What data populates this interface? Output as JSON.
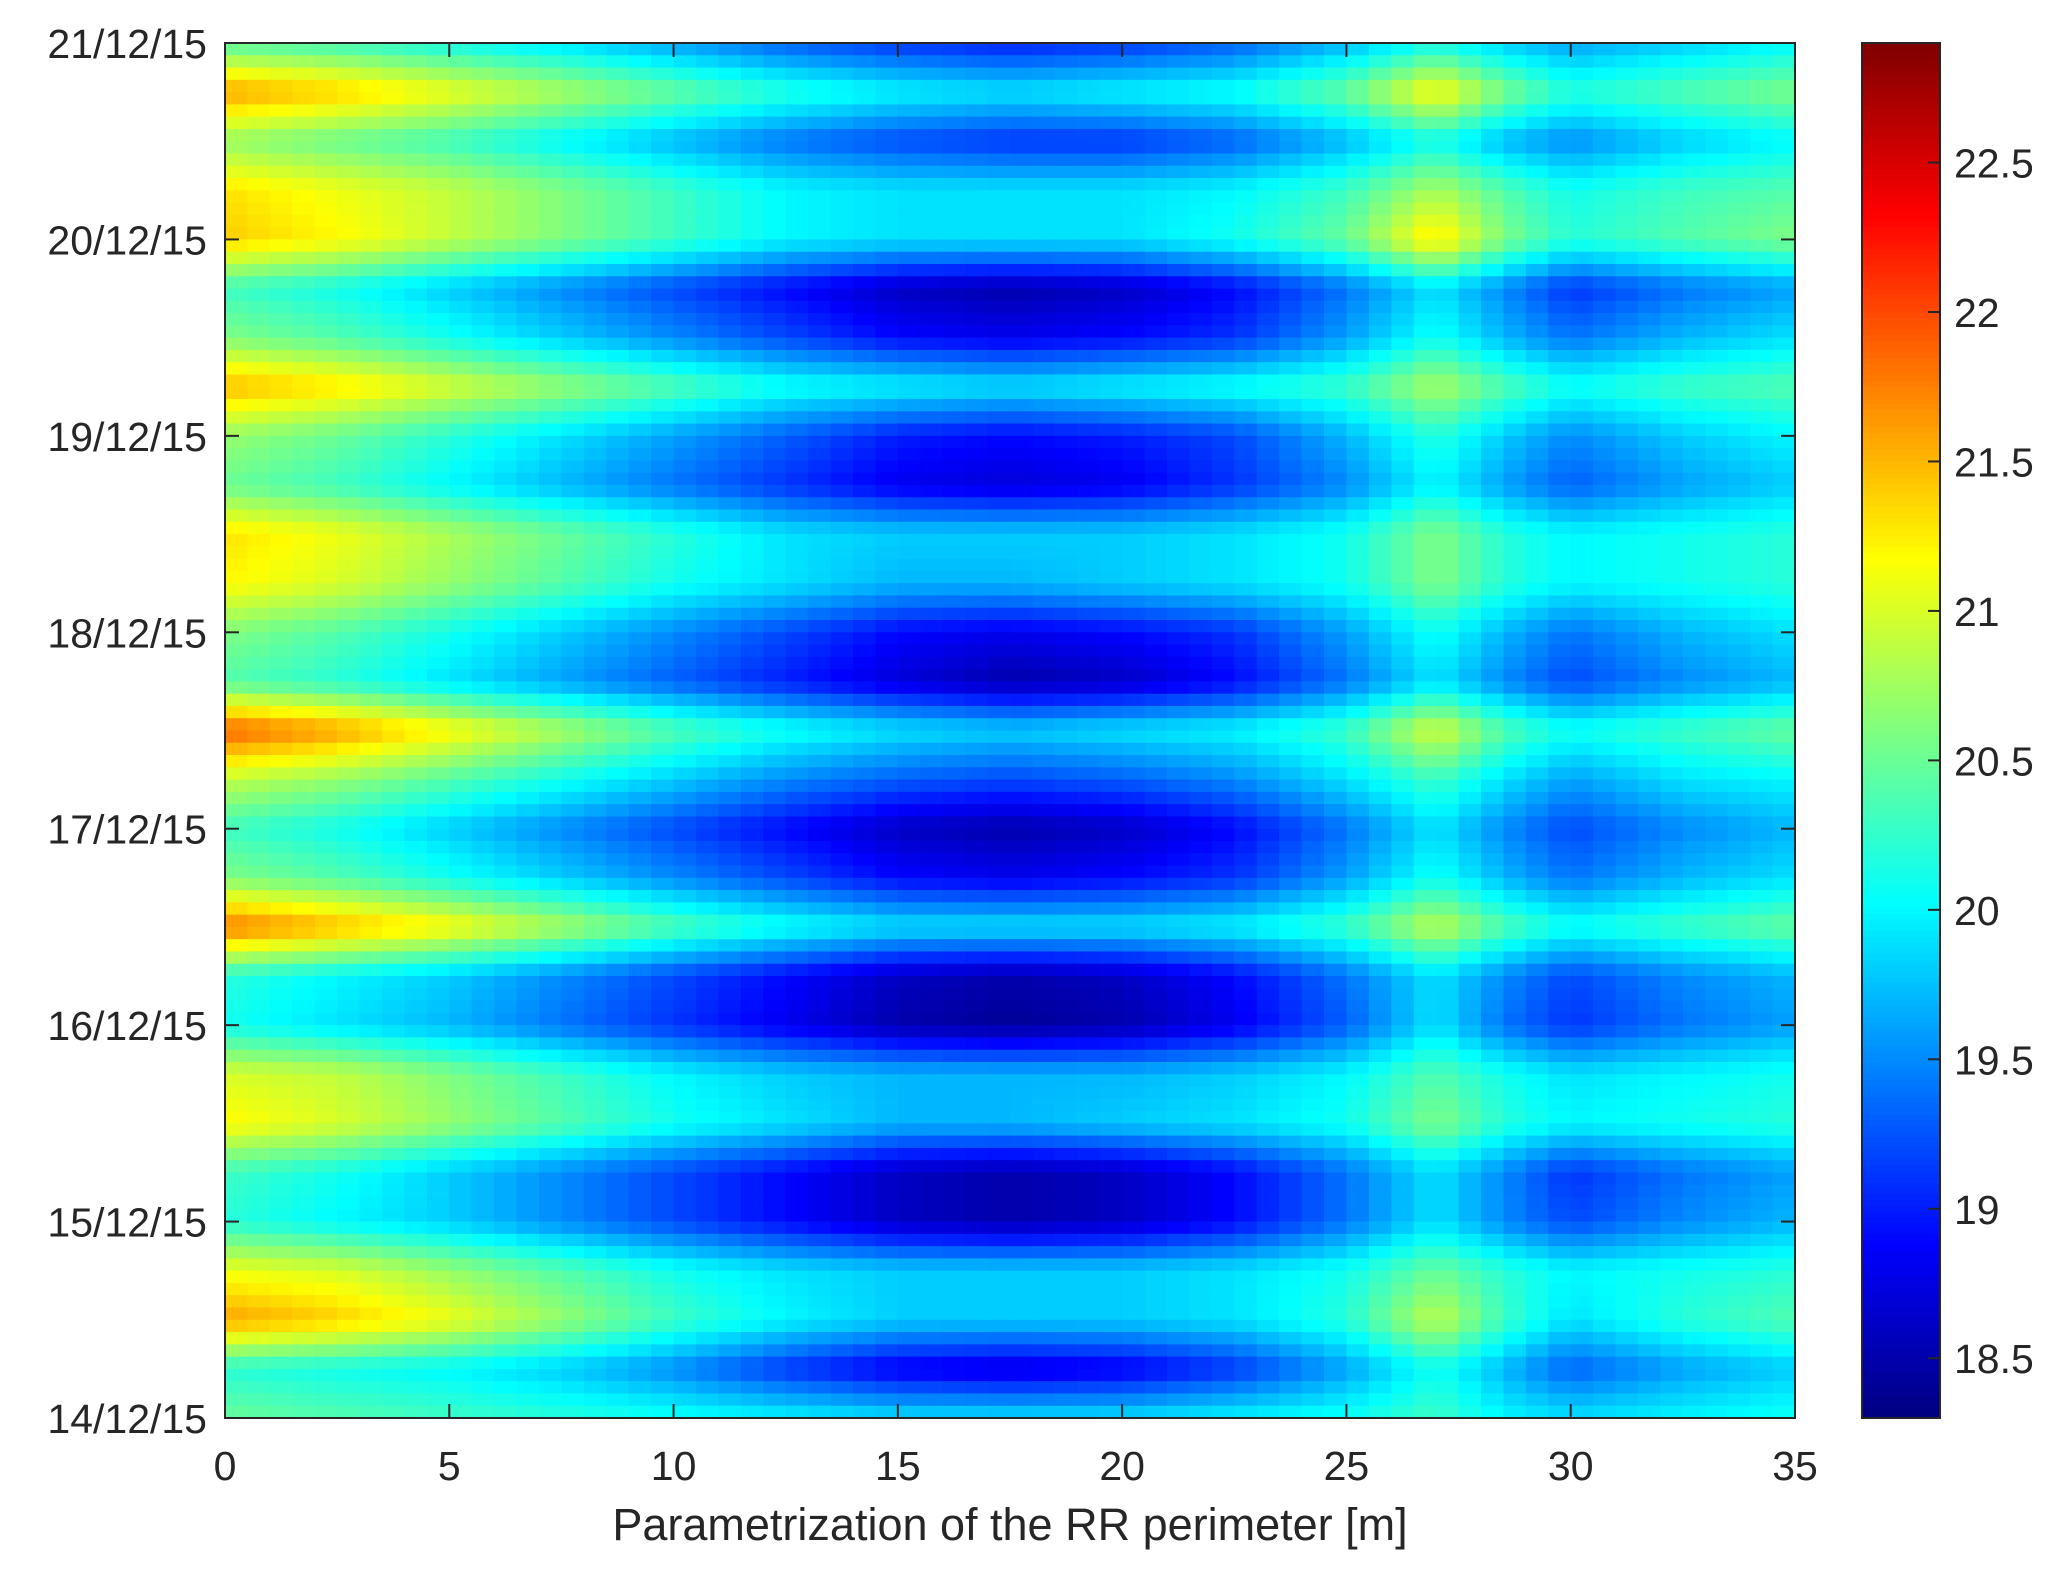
{
  "chart_data": {
    "type": "heatmap",
    "title": "",
    "xlabel": "Parametrization of the RR perimeter [m]",
    "ylabel": "",
    "xlim": [
      0,
      35
    ],
    "ylim": [
      "14/12/15",
      "21/12/15"
    ],
    "x_ticks": [
      "0",
      "5",
      "10",
      "15",
      "20",
      "25",
      "30",
      "35"
    ],
    "y_ticks": [
      "14/12/15",
      "15/12/15",
      "16/12/15",
      "17/12/15",
      "18/12/15",
      "19/12/15",
      "20/12/15",
      "21/12/15"
    ],
    "colorbar": {
      "colormap": "jet",
      "range": [
        18.3,
        22.9
      ],
      "ticks": [
        "18.5",
        "19",
        "19.5",
        "20",
        "20.5",
        "21",
        "21.5",
        "22",
        "22.5"
      ],
      "location": "right"
    },
    "x": [
      0,
      2.5,
      5,
      7.5,
      10,
      12.5,
      15,
      17.5,
      20,
      22.5,
      25,
      27,
      28.5,
      30,
      32.5,
      35
    ],
    "y": [
      "14/12/15 00:00",
      "14/12/15 06:00",
      "14/12/15 12:00",
      "14/12/15 18:00",
      "15/12/15 00:00",
      "15/12/15 06:00",
      "15/12/15 12:00",
      "15/12/15 18:00",
      "16/12/15 00:00",
      "16/12/15 06:00",
      "16/12/15 12:00",
      "16/12/15 18:00",
      "17/12/15 00:00",
      "17/12/15 06:00",
      "17/12/15 12:00",
      "17/12/15 18:00",
      "18/12/15 00:00",
      "18/12/15 06:00",
      "18/12/15 12:00",
      "18/12/15 18:00",
      "19/12/15 00:00",
      "19/12/15 06:00",
      "19/12/15 12:00",
      "19/12/15 18:00",
      "20/12/15 00:00",
      "20/12/15 06:00",
      "20/12/15 12:00",
      "20/12/15 18:00",
      "21/12/15 00:00"
    ],
    "z": [
      [
        20.5,
        20.4,
        20.3,
        20.2,
        20.1,
        20.0,
        19.9,
        19.9,
        19.9,
        20.0,
        20.1,
        20.3,
        20.0,
        19.9,
        20.0,
        20.1
      ],
      [
        20.2,
        20.1,
        20.0,
        19.8,
        19.5,
        19.1,
        18.8,
        18.7,
        18.8,
        19.1,
        19.6,
        20.1,
        19.7,
        19.3,
        19.6,
        19.8
      ],
      [
        21.6,
        21.4,
        21.1,
        20.7,
        20.3,
        20.0,
        19.8,
        19.8,
        19.8,
        19.9,
        20.2,
        20.9,
        20.3,
        19.9,
        20.2,
        20.4
      ],
      [
        21.1,
        21.0,
        20.7,
        20.4,
        20.1,
        19.9,
        19.8,
        19.8,
        19.8,
        19.9,
        20.1,
        20.5,
        20.2,
        20.0,
        20.1,
        20.2
      ],
      [
        20.2,
        20.0,
        19.8,
        19.5,
        19.2,
        18.9,
        18.6,
        18.5,
        18.6,
        18.9,
        19.4,
        19.9,
        19.5,
        19.2,
        19.5,
        19.7
      ],
      [
        20.3,
        20.1,
        19.8,
        19.5,
        19.2,
        18.9,
        18.6,
        18.5,
        18.6,
        18.9,
        19.4,
        19.9,
        19.5,
        19.1,
        19.4,
        19.6
      ],
      [
        21.2,
        21.0,
        20.7,
        20.4,
        20.1,
        19.9,
        19.7,
        19.7,
        19.8,
        19.9,
        20.1,
        20.6,
        20.2,
        20.0,
        20.1,
        20.2
      ],
      [
        21.0,
        20.9,
        20.6,
        20.3,
        20.0,
        19.8,
        19.7,
        19.7,
        19.7,
        19.8,
        20.0,
        20.4,
        20.1,
        19.9,
        20.0,
        20.1
      ],
      [
        20.1,
        19.9,
        19.7,
        19.4,
        19.1,
        18.8,
        18.5,
        18.4,
        18.5,
        18.8,
        19.3,
        19.9,
        19.4,
        19.1,
        19.4,
        19.6
      ],
      [
        20.2,
        20.0,
        19.8,
        19.5,
        19.2,
        18.9,
        18.6,
        18.5,
        18.6,
        18.9,
        19.4,
        19.9,
        19.5,
        19.2,
        19.5,
        19.7
      ],
      [
        21.8,
        21.5,
        21.2,
        20.8,
        20.4,
        20.1,
        19.9,
        19.9,
        19.9,
        20.0,
        20.3,
        20.9,
        20.4,
        20.1,
        20.3,
        20.5
      ],
      [
        20.6,
        20.4,
        20.1,
        19.8,
        19.5,
        19.2,
        18.9,
        18.8,
        18.9,
        19.1,
        19.6,
        20.1,
        19.7,
        19.4,
        19.7,
        19.9
      ],
      [
        20.3,
        20.1,
        19.8,
        19.5,
        19.2,
        18.9,
        18.6,
        18.5,
        18.6,
        18.9,
        19.4,
        19.9,
        19.5,
        19.2,
        19.5,
        19.7
      ],
      [
        20.9,
        20.7,
        20.4,
        20.1,
        19.8,
        19.5,
        19.3,
        19.2,
        19.3,
        19.5,
        19.9,
        20.3,
        19.9,
        19.6,
        19.9,
        20.0
      ],
      [
        21.9,
        21.6,
        21.2,
        20.8,
        20.4,
        20.1,
        19.9,
        19.8,
        19.9,
        20.0,
        20.3,
        21.0,
        20.4,
        20.1,
        20.3,
        20.5
      ],
      [
        20.4,
        20.2,
        19.9,
        19.6,
        19.3,
        19.0,
        18.7,
        18.5,
        18.6,
        18.9,
        19.4,
        19.9,
        19.5,
        19.2,
        19.5,
        19.7
      ],
      [
        20.6,
        20.4,
        20.1,
        19.8,
        19.5,
        19.2,
        18.9,
        18.8,
        18.9,
        19.1,
        19.6,
        20.1,
        19.7,
        19.4,
        19.7,
        19.9
      ],
      [
        21.2,
        21.0,
        20.7,
        20.4,
        20.1,
        19.9,
        19.7,
        19.7,
        19.8,
        19.9,
        20.1,
        20.6,
        20.2,
        20.0,
        20.1,
        20.2
      ],
      [
        21.3,
        21.1,
        20.8,
        20.5,
        20.2,
        19.9,
        19.8,
        19.8,
        19.8,
        19.9,
        20.1,
        20.6,
        20.2,
        20.0,
        20.1,
        20.2
      ],
      [
        20.5,
        20.3,
        20.0,
        19.7,
        19.4,
        19.1,
        18.8,
        18.7,
        18.8,
        19.1,
        19.5,
        20.0,
        19.6,
        19.3,
        19.6,
        19.8
      ],
      [
        20.7,
        20.5,
        20.2,
        19.9,
        19.6,
        19.3,
        19.0,
        18.9,
        19.0,
        19.2,
        19.7,
        20.2,
        19.8,
        19.5,
        19.8,
        20.0
      ],
      [
        21.5,
        21.3,
        21.0,
        20.7,
        20.4,
        20.1,
        20.0,
        19.9,
        20.0,
        20.1,
        20.3,
        20.8,
        20.4,
        20.1,
        20.3,
        20.4
      ],
      [
        20.6,
        20.4,
        20.1,
        19.8,
        19.5,
        19.2,
        18.9,
        18.8,
        18.9,
        19.1,
        19.6,
        20.1,
        19.7,
        19.4,
        19.7,
        19.9
      ],
      [
        20.3,
        20.1,
        19.8,
        19.5,
        19.2,
        18.9,
        18.6,
        18.5,
        18.6,
        18.9,
        19.4,
        19.9,
        19.5,
        19.1,
        19.4,
        19.6
      ],
      [
        21.4,
        21.2,
        20.9,
        20.6,
        20.3,
        20.0,
        19.9,
        19.9,
        19.9,
        20.1,
        20.5,
        21.3,
        20.6,
        20.2,
        20.4,
        20.6
      ],
      [
        21.3,
        21.1,
        20.9,
        20.6,
        20.3,
        20.0,
        19.9,
        19.9,
        19.9,
        20.0,
        20.3,
        20.8,
        20.4,
        20.1,
        20.3,
        20.4
      ],
      [
        20.7,
        20.5,
        20.3,
        20.0,
        19.7,
        19.4,
        19.2,
        19.1,
        19.1,
        19.3,
        19.7,
        20.1,
        19.7,
        19.5,
        19.8,
        20.0
      ],
      [
        21.6,
        21.4,
        21.1,
        20.8,
        20.5,
        20.2,
        20.0,
        19.9,
        20.0,
        20.1,
        20.5,
        21.2,
        20.6,
        20.2,
        20.4,
        20.6
      ],
      [
        20.4,
        20.3,
        20.1,
        19.9,
        19.6,
        19.3,
        19.1,
        19.0,
        19.1,
        19.3,
        19.7,
        20.1,
        19.8,
        19.6,
        19.8,
        20.0
      ]
    ]
  }
}
